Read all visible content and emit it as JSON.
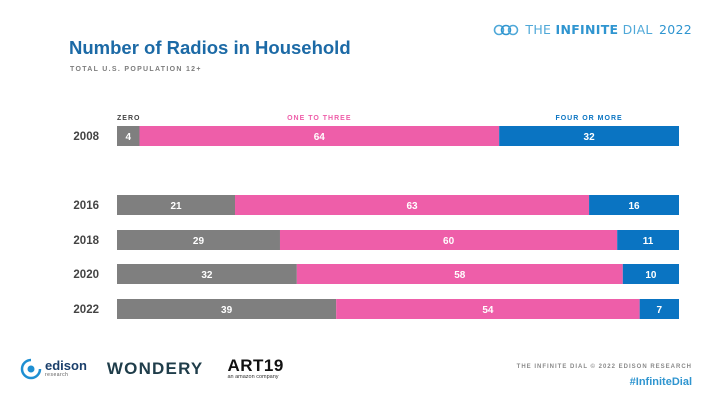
{
  "brand": {
    "part1": "THE ",
    "part2": "INFINITE",
    "part3": " DIAL",
    "year": "2022"
  },
  "chart_data": {
    "type": "bar",
    "orientation": "horizontal",
    "stacked": true,
    "title": "Number of Radios in Household",
    "subtitle": "TOTAL U.S. POPULATION 12+",
    "categories": [
      "2008",
      "2016",
      "2018",
      "2020",
      "2022"
    ],
    "series": [
      {
        "name": "ZERO",
        "color": "#7f7f7f",
        "values": [
          4,
          21,
          29,
          32,
          39
        ]
      },
      {
        "name": "ONE TO THREE",
        "color": "#ee5ea9",
        "values": [
          64,
          63,
          60,
          58,
          54
        ]
      },
      {
        "name": "FOUR OR MORE",
        "color": "#0a74c2",
        "values": [
          32,
          16,
          11,
          10,
          7
        ]
      }
    ],
    "xlim": [
      0,
      100
    ],
    "grid": false,
    "legend": "top"
  },
  "footer": {
    "credit": "THE INFINITE DIAL  © 2022 EDISON RESEARCH",
    "hashtag": "#InfiniteDial"
  },
  "logos": {
    "edison": "edison",
    "edison_sub": "research",
    "wondery": "WONDERY",
    "art19": "ART19",
    "art19_sub": "an amazon company"
  }
}
